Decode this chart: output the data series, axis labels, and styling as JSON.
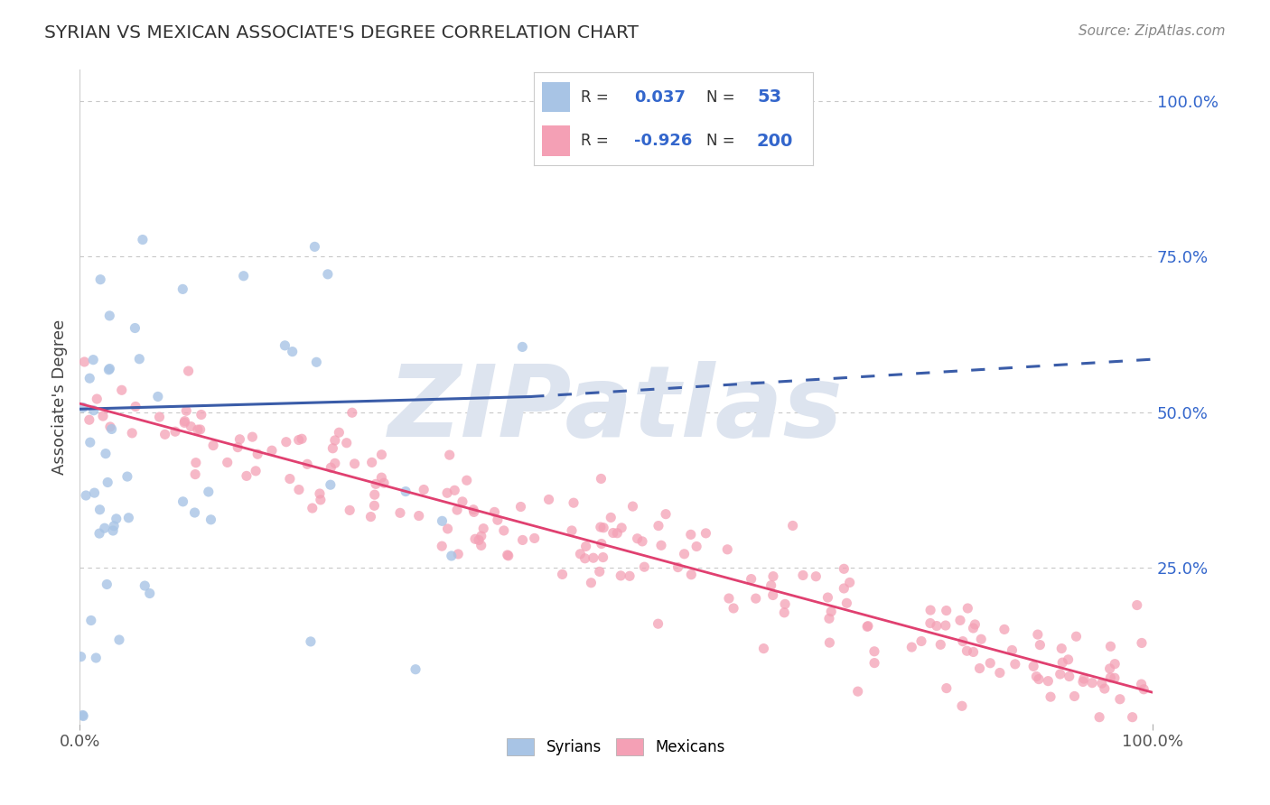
{
  "title": "SYRIAN VS MEXICAN ASSOCIATE'S DEGREE CORRELATION CHART",
  "source": "Source: ZipAtlas.com",
  "ylabel": "Associate's Degree",
  "syrian_R": 0.037,
  "syrian_N": 53,
  "mexican_R": -0.926,
  "mexican_N": 200,
  "syrian_color": "#a8c4e5",
  "mexican_color": "#f4a0b5",
  "syrian_line_color": "#3a5ca8",
  "mexican_line_color": "#e04070",
  "legend_blue": "#3366cc",
  "background_color": "#ffffff",
  "grid_color": "#c8c8c8",
  "watermark_color": "#dde4ef",
  "ylim_max": 1.05,
  "xlim_max": 1.0
}
